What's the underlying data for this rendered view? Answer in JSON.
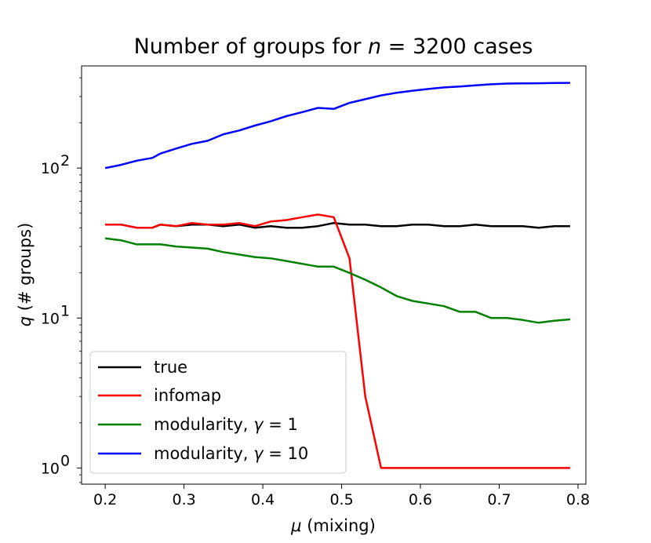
{
  "chart_data": {
    "type": "line",
    "title": "Number of groups for n = 3200 cases",
    "title_parts": {
      "pre": "Number of groups for ",
      "var": "n",
      "eq": " = 3200 cases"
    },
    "xlabel": "μ (mixing)",
    "xlabel_parts": {
      "var": "μ",
      "rest": " (mixing)"
    },
    "ylabel": "q (# groups)",
    "ylabel_parts": {
      "var": "q",
      "rest": " (# groups)"
    },
    "yscale": "log",
    "xlim": [
      0.17,
      0.81
    ],
    "ylim": [
      0.78,
      480
    ],
    "x_ticks": [
      "0.2",
      "0.3",
      "0.4",
      "0.5",
      "0.6",
      "0.7",
      "0.8"
    ],
    "x_tick_values": [
      0.2,
      0.3,
      0.4,
      0.5,
      0.6,
      0.7,
      0.8
    ],
    "y_ticks": [
      {
        "value": 1,
        "base": "10",
        "exp": "0"
      },
      {
        "value": 10,
        "base": "10",
        "exp": "1"
      },
      {
        "value": 100,
        "base": "10",
        "exp": "2"
      }
    ],
    "x": [
      0.2,
      0.22,
      0.24,
      0.26,
      0.27,
      0.29,
      0.31,
      0.33,
      0.35,
      0.37,
      0.39,
      0.41,
      0.43,
      0.45,
      0.47,
      0.49,
      0.51,
      0.53,
      0.55,
      0.57,
      0.59,
      0.61,
      0.63,
      0.65,
      0.67,
      0.69,
      0.71,
      0.73,
      0.75,
      0.77,
      0.79
    ],
    "series": [
      {
        "name": "true",
        "color": "#000000",
        "values": [
          42,
          42,
          40,
          40,
          42,
          41,
          42,
          42,
          41,
          42,
          40,
          41,
          40,
          40,
          41,
          43,
          42,
          42,
          41,
          41,
          42,
          42,
          41,
          41,
          42,
          41,
          41,
          41,
          40,
          41,
          41
        ]
      },
      {
        "name": "infomap",
        "color": "#ff0000",
        "values": [
          42,
          42,
          40,
          40,
          42,
          41,
          43,
          42,
          42,
          43,
          41,
          44,
          45,
          47,
          49,
          47,
          25,
          3,
          1,
          1,
          1,
          1,
          1,
          1,
          1,
          1,
          1,
          1,
          1,
          1,
          1
        ]
      },
      {
        "name": "modularity, γ = 1",
        "label_pre": "modularity, ",
        "label_var": "γ",
        "label_post": " = 1",
        "color": "#008000",
        "values": [
          34,
          33,
          31,
          31,
          31,
          30,
          29.5,
          29,
          27.5,
          26.5,
          25.5,
          25,
          24,
          23,
          22,
          22,
          20,
          18,
          16,
          14,
          13,
          12.5,
          12,
          11,
          11,
          10,
          10,
          9.7,
          9.3,
          9.6,
          9.8
        ]
      },
      {
        "name": "modularity, γ = 10",
        "label_pre": "modularity, ",
        "label_var": "γ",
        "label_post": " = 10",
        "color": "#0000ff",
        "values": [
          100,
          105,
          112,
          117,
          125,
          135,
          145,
          152,
          168,
          178,
          192,
          205,
          222,
          236,
          252,
          248,
          272,
          288,
          305,
          318,
          328,
          337,
          345,
          350,
          356,
          362,
          366,
          367,
          368,
          369,
          370
        ]
      }
    ],
    "legend_position": "lower-left"
  }
}
